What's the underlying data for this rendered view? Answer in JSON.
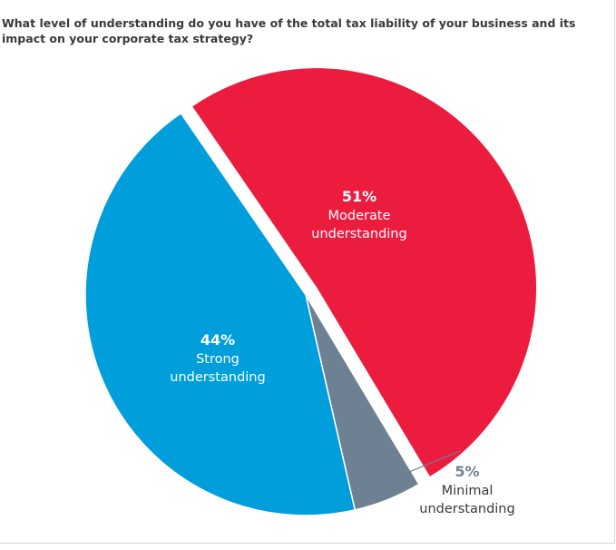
{
  "question": "What level of understanding do you have of the total tax liability of your business and its impact on your corporate tax strategy?",
  "chart_data": {
    "type": "pie",
    "title": "What level of understanding do you have of the total tax liability of your business and its impact on your corporate tax strategy?",
    "slices": [
      {
        "label_lines": [
          "Moderate",
          "understanding"
        ],
        "value": 51,
        "value_label": "51%",
        "color": "#ec1c3f",
        "exploded": true
      },
      {
        "label_lines": [
          "Minimal",
          "understanding"
        ],
        "value": 5,
        "value_label": "5%",
        "color": "#6e8192",
        "exploded": false
      },
      {
        "label_lines": [
          "Strong",
          "understanding"
        ],
        "value": 44,
        "value_label": "44%",
        "color": "#009fdc",
        "exploded": false
      }
    ]
  }
}
